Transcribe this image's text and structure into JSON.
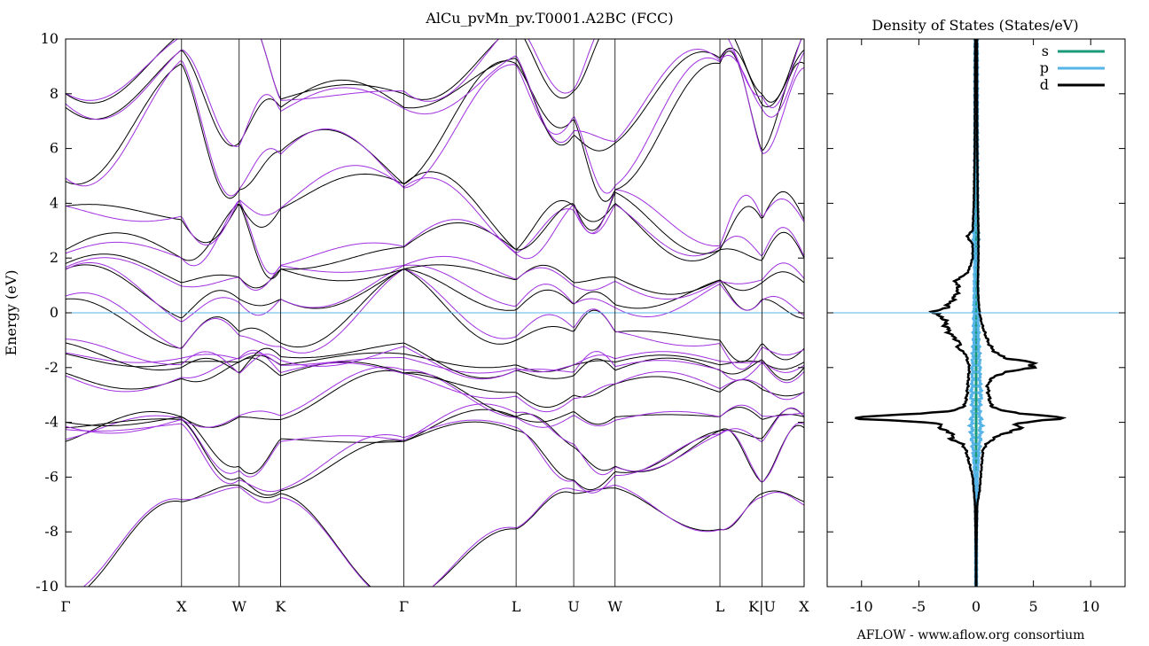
{
  "chart_data": [
    {
      "type": "line",
      "title": "AlCu_pvMn_pv.T0001.A2BC (FCC)",
      "xlabel": "",
      "ylabel": "Energy (eV)",
      "ylim": [
        -10,
        10
      ],
      "yticks": [
        "10",
        "8",
        "6",
        "4",
        "2",
        "0",
        "-2",
        "-4",
        "-6",
        "-8",
        "-10"
      ],
      "kpoints": [
        "Γ",
        "X",
        "W",
        "K",
        "Γ",
        "L",
        "U",
        "W",
        "L",
        "K|U",
        "X"
      ],
      "kpath_fractions": [
        0,
        0.157,
        0.235,
        0.291,
        0.458,
        0.61,
        0.688,
        0.744,
        0.886,
        0.943,
        1.0
      ],
      "fermi_level": 0,
      "series": [
        {
          "spin": "up",
          "color": "#000000"
        },
        {
          "spin": "down",
          "color": "#a030e0"
        }
      ],
      "grid": false
    },
    {
      "type": "line",
      "title": "Density of States (States/eV)",
      "xlim": [
        -13,
        13
      ],
      "xticks": [
        "-10",
        "-5",
        "0",
        "5",
        "10"
      ],
      "ylim": [
        -10,
        10
      ],
      "fermi_level": 0,
      "series": [
        {
          "name": "s",
          "color": "#1a9a7a"
        },
        {
          "name": "p",
          "color": "#56b4e9"
        },
        {
          "name": "d",
          "color": "#000000"
        }
      ],
      "legend_position": "top-right",
      "d_up": [
        [
          -10,
          0.02
        ],
        [
          -9,
          0.02
        ],
        [
          -8,
          0.05
        ],
        [
          -7,
          0.1
        ],
        [
          -6.5,
          0.3
        ],
        [
          -6,
          0.4
        ],
        [
          -5.5,
          0.5
        ],
        [
          -5,
          0.6
        ],
        [
          -4.8,
          0.9
        ],
        [
          -4.6,
          1.5
        ],
        [
          -4.4,
          2.4
        ],
        [
          -4.2,
          4.2
        ],
        [
          -4.1,
          3.0
        ],
        [
          -4.0,
          4.5
        ],
        [
          -3.9,
          6.5
        ],
        [
          -3.8,
          7.4
        ],
        [
          -3.7,
          4.5
        ],
        [
          -3.6,
          2.5
        ],
        [
          -3.4,
          1.3
        ],
        [
          -3.0,
          1.1
        ],
        [
          -2.6,
          1.0
        ],
        [
          -2.3,
          1.6
        ],
        [
          -2.1,
          3.4
        ],
        [
          -2.0,
          4.8
        ],
        [
          -1.9,
          5.2
        ],
        [
          -1.8,
          4.8
        ],
        [
          -1.7,
          3.0
        ],
        [
          -1.5,
          1.8
        ],
        [
          -1.2,
          1.2
        ],
        [
          -0.8,
          0.8
        ],
        [
          -0.4,
          0.5
        ],
        [
          0,
          0.3
        ],
        [
          0.5,
          0.2
        ],
        [
          1,
          0.15
        ],
        [
          2,
          0.2
        ],
        [
          2.5,
          0.2
        ],
        [
          3,
          0.2
        ],
        [
          4,
          0.15
        ],
        [
          6,
          0.1
        ],
        [
          8,
          0.08
        ],
        [
          10,
          0.08
        ]
      ],
      "d_dn": [
        [
          -10,
          0.02
        ],
        [
          -9,
          0.02
        ],
        [
          -8,
          0.05
        ],
        [
          -7,
          0.1
        ],
        [
          -6.5,
          0.2
        ],
        [
          -6,
          0.3
        ],
        [
          -5.5,
          0.6
        ],
        [
          -5,
          0.9
        ],
        [
          -4.8,
          1.2
        ],
        [
          -4.6,
          2.2
        ],
        [
          -4.4,
          2.0
        ],
        [
          -4.2,
          3.4
        ],
        [
          -4.1,
          2.6
        ],
        [
          -4.0,
          4.5
        ],
        [
          -3.9,
          9.0
        ],
        [
          -3.8,
          10.4
        ],
        [
          -3.7,
          6.0
        ],
        [
          -3.6,
          2.2
        ],
        [
          -3.4,
          1.0
        ],
        [
          -3.0,
          0.8
        ],
        [
          -2.0,
          0.6
        ],
        [
          -1.5,
          0.9
        ],
        [
          -1.3,
          1.6
        ],
        [
          -1.1,
          1.4
        ],
        [
          -0.8,
          2.2
        ],
        [
          -0.5,
          2.6
        ],
        [
          -0.2,
          2.8
        ],
        [
          0,
          3.8
        ],
        [
          0.2,
          2.6
        ],
        [
          0.5,
          2.0
        ],
        [
          0.8,
          1.6
        ],
        [
          1.0,
          1.6
        ],
        [
          1.2,
          1.8
        ],
        [
          1.4,
          0.9
        ],
        [
          1.6,
          0.6
        ],
        [
          2.0,
          0.3
        ],
        [
          2.5,
          0.3
        ],
        [
          2.8,
          0.8
        ],
        [
          3.0,
          0.3
        ],
        [
          4,
          0.2
        ],
        [
          6,
          0.12
        ],
        [
          8,
          0.1
        ],
        [
          10,
          0.08
        ]
      ],
      "p_env": [
        [
          -10,
          0.05
        ],
        [
          -8,
          0.05
        ],
        [
          -6,
          0.1
        ],
        [
          -5,
          0.25
        ],
        [
          -4.5,
          0.35
        ],
        [
          -4,
          0.4
        ],
        [
          -3.5,
          0.25
        ],
        [
          -3,
          0.4
        ],
        [
          -2.5,
          0.3
        ],
        [
          -2,
          0.3
        ],
        [
          -1,
          0.2
        ],
        [
          0,
          0.18
        ],
        [
          1,
          0.15
        ],
        [
          2,
          0.12
        ],
        [
          2.8,
          0.2
        ],
        [
          3,
          0.15
        ],
        [
          5,
          0.12
        ],
        [
          10,
          0.1
        ]
      ]
    }
  ],
  "footer": "AFLOW - www.aflow.org consortium"
}
